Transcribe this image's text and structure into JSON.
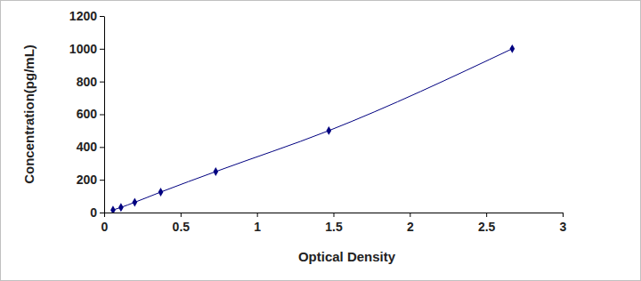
{
  "chart_data": {
    "type": "line",
    "x_label": "Optical Density",
    "y_label": "Concentration(pg/mL)",
    "x": [
      0.058,
      0.11,
      0.2,
      0.37,
      0.73,
      1.47,
      2.67
    ],
    "values": [
      15.6,
      31.25,
      62.5,
      125,
      250,
      500,
      1000
    ],
    "color": "#000080",
    "marker": "diamond",
    "xlim": [
      0,
      3
    ],
    "xticks": [
      0,
      0.5,
      1,
      1.5,
      2,
      2.5,
      3
    ],
    "ylim": [
      0,
      1200
    ],
    "yticks": [
      0,
      200,
      400,
      600,
      800,
      1000,
      1200
    ],
    "grid": false
  }
}
